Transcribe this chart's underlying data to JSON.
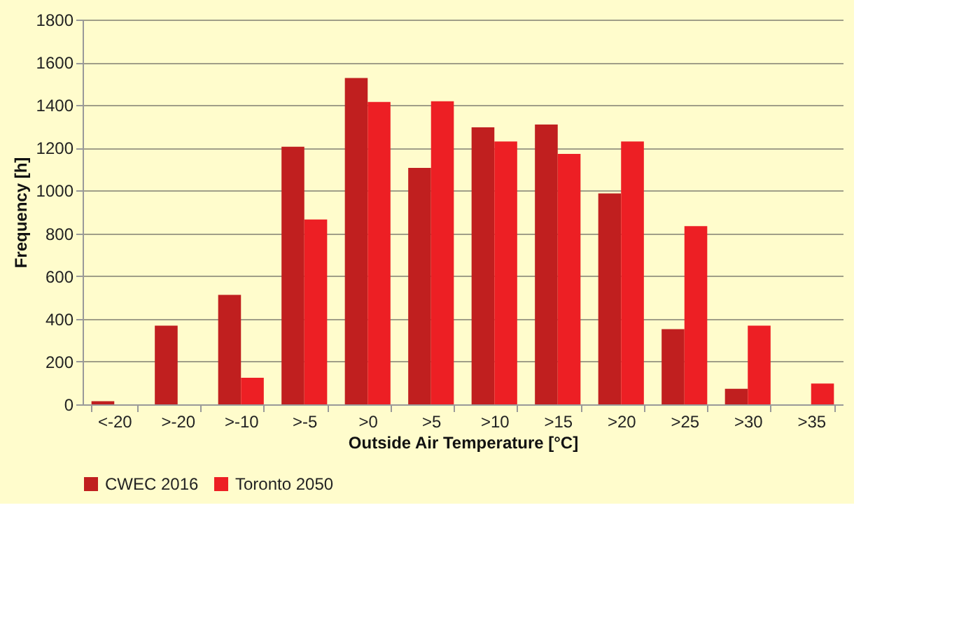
{
  "chart_data": {
    "type": "bar",
    "xlabel": "Outside Air Temperature [°C]",
    "ylabel": "Frequency [h]",
    "categories": [
      "<-20",
      ">-20",
      ">-10",
      ">-5",
      ">0",
      ">5",
      ">10",
      ">15",
      ">20",
      ">25",
      ">30",
      ">35"
    ],
    "series": [
      {
        "name": "CWEC 2016",
        "color": "#c01f1f",
        "values": [
          15,
          368,
          512,
          1205,
          1527,
          1106,
          1296,
          1309,
          987,
          352,
          73,
          null
        ]
      },
      {
        "name": "Toronto 2050",
        "color": "#ed1f24",
        "values": [
          null,
          null,
          124,
          865,
          1415,
          1418,
          1230,
          1172,
          1230,
          834,
          368,
          97
        ]
      }
    ],
    "ylim": [
      0,
      1800
    ],
    "yticks": [
      0,
      200,
      400,
      600,
      800,
      1000,
      1200,
      1400,
      1600,
      1800
    ],
    "grid": "y",
    "legend": "bottom"
  }
}
